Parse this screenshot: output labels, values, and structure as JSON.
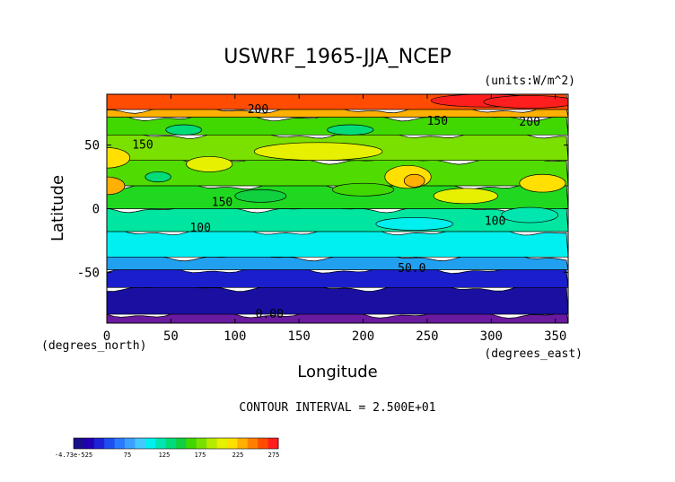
{
  "chart_data": {
    "type": "heatmap",
    "title": "USWRF_1965-JJA_NCEP",
    "units_note": "(units:W/m^2)",
    "xlabel": "Longitude",
    "ylabel": "Latitude",
    "x_units_note": "(degrees_east)",
    "y_units_note": "(degrees_north)",
    "contour_interval_note": "CONTOUR INTERVAL = 2.500E+01",
    "xlim": [
      0,
      360
    ],
    "ylim": [
      -90,
      90
    ],
    "x_ticks": [
      "0",
      "50",
      "100",
      "150",
      "200",
      "250",
      "300",
      "350"
    ],
    "x_tick_values": [
      0,
      50,
      100,
      150,
      200,
      250,
      300,
      350
    ],
    "y_ticks": [
      "50",
      "0",
      "-50"
    ],
    "y_tick_values": [
      50,
      0,
      -50
    ],
    "colorbar_labels": [
      "-4.73e-525",
      "75",
      "125",
      "175",
      "225",
      "275"
    ],
    "colorbar_colors": [
      "#1a0f8a",
      "#2200b4",
      "#1e22d6",
      "#1e4ef0",
      "#2a7aff",
      "#3ca0ff",
      "#44c8ff",
      "#00f0f0",
      "#00e6b0",
      "#00dc78",
      "#10d040",
      "#40d800",
      "#7ae000",
      "#b8ea00",
      "#e6f000",
      "#ffe000",
      "#ffb000",
      "#ff8000",
      "#ff4c00",
      "#ff1e1e"
    ],
    "contour_labels": [
      {
        "text": "200",
        "lon": 118,
        "lat": 78
      },
      {
        "text": "150",
        "lon": 28,
        "lat": 50
      },
      {
        "text": "150",
        "lon": 258,
        "lat": 69
      },
      {
        "text": "200",
        "lon": 330,
        "lat": 68
      },
      {
        "text": "150",
        "lon": 90,
        "lat": 5
      },
      {
        "text": "100",
        "lon": 73,
        "lat": -15
      },
      {
        "text": "100",
        "lon": 303,
        "lat": -10
      },
      {
        "text": "50.0",
        "lon": 238,
        "lat": -47
      },
      {
        "text": "0.00",
        "lon": 127,
        "lat": -83
      }
    ],
    "lat_bands": [
      {
        "lat_from": -90,
        "lat_to": -83,
        "value": 0,
        "color": "#6a1aa0"
      },
      {
        "lat_from": -83,
        "lat_to": -62,
        "value": 20,
        "color": "#1a0fa0"
      },
      {
        "lat_from": -62,
        "lat_to": -48,
        "value": 45,
        "color": "#1a1ecc"
      },
      {
        "lat_from": -48,
        "lat_to": -38,
        "value": 85,
        "color": "#22a0f0"
      },
      {
        "lat_from": -38,
        "lat_to": -18,
        "value": 110,
        "color": "#00f0f0"
      },
      {
        "lat_from": -18,
        "lat_to": 0,
        "value": 135,
        "color": "#00e6a0"
      },
      {
        "lat_from": 0,
        "lat_to": 18,
        "value": 165,
        "color": "#20d820"
      },
      {
        "lat_from": 18,
        "lat_to": 38,
        "value": 170,
        "color": "#50dc00"
      },
      {
        "lat_from": 38,
        "lat_to": 58,
        "value": 175,
        "color": "#7ae000"
      },
      {
        "lat_from": 58,
        "lat_to": 72,
        "value": 160,
        "color": "#40d800"
      },
      {
        "lat_from": 72,
        "lat_to": 78,
        "value": 200,
        "color": "#ffb000"
      },
      {
        "lat_from": 78,
        "lat_to": 90,
        "value": 240,
        "color": "#ff4c00"
      }
    ]
  }
}
